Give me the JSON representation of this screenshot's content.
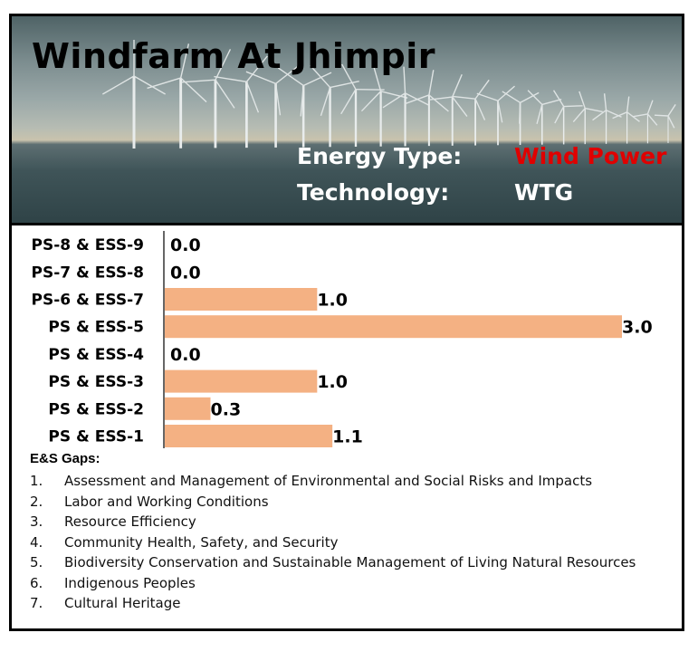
{
  "title": "Windfarm At Jhimpir",
  "info": {
    "energy_type_label": "Energy Type:",
    "energy_type_value": "Wind Power",
    "technology_label": "Technology:",
    "technology_value": "WTG",
    "energy_type_color": "#e00000"
  },
  "chart_data": {
    "type": "bar",
    "orientation": "horizontal",
    "categories": [
      "PS-8 & ESS-9",
      "PS-7 & ESS-8",
      "PS-6 & ESS-7",
      "PS & ESS-5",
      "PS & ESS-4",
      "PS & ESS-3",
      "PS & ESS-2",
      "PS & ESS-1"
    ],
    "values": [
      0.0,
      0.0,
      1.0,
      3.0,
      0.0,
      1.0,
      0.3,
      1.1
    ],
    "value_labels": [
      "0.0",
      "0.0",
      "1.0",
      "3.0",
      "0.0",
      "1.0",
      "0.3",
      "1.1"
    ],
    "xlim": [
      0,
      3
    ],
    "bar_color": "#f4b183",
    "grid": false
  },
  "gaps": {
    "title": "E&S Gaps:",
    "items": [
      {
        "num": "1.",
        "text": "Assessment and Management of Environmental and Social Risks and Impacts"
      },
      {
        "num": "2.",
        "text": "Labor and Working Conditions"
      },
      {
        "num": "3.",
        "text": "Resource Efficiency"
      },
      {
        "num": "4.",
        "text": "Community Health, Safety, and Security"
      },
      {
        "num": "5.",
        "text": "Biodiversity Conservation and Sustainable Management of Living Natural Resources"
      },
      {
        "num": "6.",
        "text": "Indigenous Peoples"
      },
      {
        "num": "7.",
        "text": "Cultural Heritage"
      }
    ]
  }
}
